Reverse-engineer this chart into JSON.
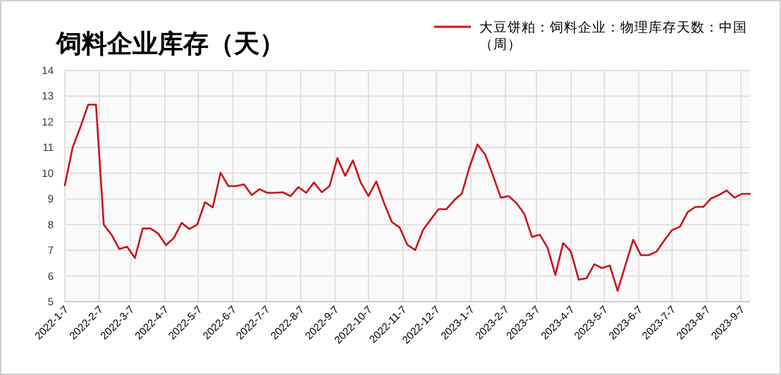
{
  "chart_data": {
    "type": "line",
    "title": "饲料企业库存（天）",
    "x": [
      "2022-01-07",
      "2022-01-14",
      "2022-01-21",
      "2022-01-28",
      "2022-02-04",
      "2022-02-11",
      "2022-02-18",
      "2022-02-25",
      "2022-03-04",
      "2022-03-11",
      "2022-03-18",
      "2022-03-25",
      "2022-04-01",
      "2022-04-08",
      "2022-04-15",
      "2022-04-22",
      "2022-04-29",
      "2022-05-06",
      "2022-05-13",
      "2022-05-20",
      "2022-05-27",
      "2022-06-03",
      "2022-06-10",
      "2022-06-17",
      "2022-06-24",
      "2022-07-01",
      "2022-07-08",
      "2022-07-15",
      "2022-07-22",
      "2022-07-29",
      "2022-08-05",
      "2022-08-12",
      "2022-08-19",
      "2022-08-26",
      "2022-09-02",
      "2022-09-09",
      "2022-09-16",
      "2022-09-23",
      "2022-09-30",
      "2022-10-07",
      "2022-10-14",
      "2022-10-21",
      "2022-10-28",
      "2022-11-04",
      "2022-11-11",
      "2022-11-18",
      "2022-11-25",
      "2022-12-02",
      "2022-12-09",
      "2022-12-16",
      "2022-12-23",
      "2022-12-30",
      "2023-01-06",
      "2023-01-13",
      "2023-01-20",
      "2023-01-27",
      "2023-02-03",
      "2023-02-10",
      "2023-02-17",
      "2023-02-24",
      "2023-03-03",
      "2023-03-10",
      "2023-03-17",
      "2023-03-24",
      "2023-03-31",
      "2023-04-07",
      "2023-04-14",
      "2023-04-21",
      "2023-04-28",
      "2023-05-05",
      "2023-05-12",
      "2023-05-19",
      "2023-05-26",
      "2023-06-02",
      "2023-06-09",
      "2023-06-16",
      "2023-06-23",
      "2023-06-30",
      "2023-07-07",
      "2023-07-14",
      "2023-07-21",
      "2023-07-28",
      "2023-08-04",
      "2023-08-11",
      "2023-08-18",
      "2023-08-25",
      "2023-09-01",
      "2023-09-08",
      "2023-09-15"
    ],
    "series": [
      {
        "name": "大豆饼粕：饲料企业：物理库存天数：中国（周）",
        "color": "#c8161d",
        "values": [
          9.53,
          11.0,
          11.8,
          12.67,
          12.67,
          8.0,
          7.6,
          7.05,
          7.14,
          6.7,
          7.85,
          7.85,
          7.65,
          7.2,
          7.48,
          8.07,
          7.83,
          8.0,
          8.87,
          8.67,
          10.02,
          9.5,
          9.5,
          9.57,
          9.15,
          9.38,
          9.24,
          9.24,
          9.26,
          9.11,
          9.46,
          9.24,
          9.64,
          9.26,
          9.5,
          10.59,
          9.9,
          10.5,
          9.64,
          9.11,
          9.68,
          8.84,
          8.1,
          7.89,
          7.21,
          7.01,
          7.79,
          8.2,
          8.6,
          8.6,
          8.95,
          9.22,
          10.26,
          11.12,
          10.72,
          9.9,
          9.05,
          9.11,
          8.84,
          8.43,
          7.52,
          7.61,
          7.1,
          6.04,
          7.28,
          6.95,
          5.86,
          5.91,
          6.46,
          6.31,
          6.41,
          5.42,
          6.42,
          7.41,
          6.81,
          6.81,
          6.95,
          7.39,
          7.79,
          7.92,
          8.49,
          8.69,
          8.69,
          9.02,
          9.15,
          9.33,
          9.05,
          9.2,
          9.2
        ]
      }
    ],
    "xlim": [
      "2022-01-07",
      "2023-09-15"
    ],
    "xticks": [
      {
        "value": "2022-01-07",
        "label": "2022-1-7"
      },
      {
        "value": "2022-02-07",
        "label": "2022-2-7"
      },
      {
        "value": "2022-03-07",
        "label": "2022-3-7"
      },
      {
        "value": "2022-04-07",
        "label": "2022-4-7"
      },
      {
        "value": "2022-05-07",
        "label": "2022-5-7"
      },
      {
        "value": "2022-06-07",
        "label": "2022-6-7"
      },
      {
        "value": "2022-07-07",
        "label": "2022-7-7"
      },
      {
        "value": "2022-08-07",
        "label": "2022-8-7"
      },
      {
        "value": "2022-09-07",
        "label": "2022-9-7"
      },
      {
        "value": "2022-10-07",
        "label": "2022-10-7"
      },
      {
        "value": "2022-11-07",
        "label": "2022-11-7"
      },
      {
        "value": "2022-12-07",
        "label": "2022-12-7"
      },
      {
        "value": "2023-01-07",
        "label": "2023-1-7"
      },
      {
        "value": "2023-02-07",
        "label": "2023-2-7"
      },
      {
        "value": "2023-03-07",
        "label": "2023-3-7"
      },
      {
        "value": "2023-04-07",
        "label": "2023-4-7"
      },
      {
        "value": "2023-05-07",
        "label": "2023-5-7"
      },
      {
        "value": "2023-06-07",
        "label": "2023-6-7"
      },
      {
        "value": "2023-07-07",
        "label": "2023-7-7"
      },
      {
        "value": "2023-08-07",
        "label": "2023-8-7"
      },
      {
        "value": "2023-09-07",
        "label": "2023-9-7"
      }
    ],
    "ylim": [
      5,
      14
    ],
    "yticks": [
      5,
      6,
      7,
      8,
      9,
      10,
      11,
      12,
      13,
      14
    ],
    "grid": true,
    "legend": "top right",
    "marker": "none",
    "line_style": "solid"
  }
}
